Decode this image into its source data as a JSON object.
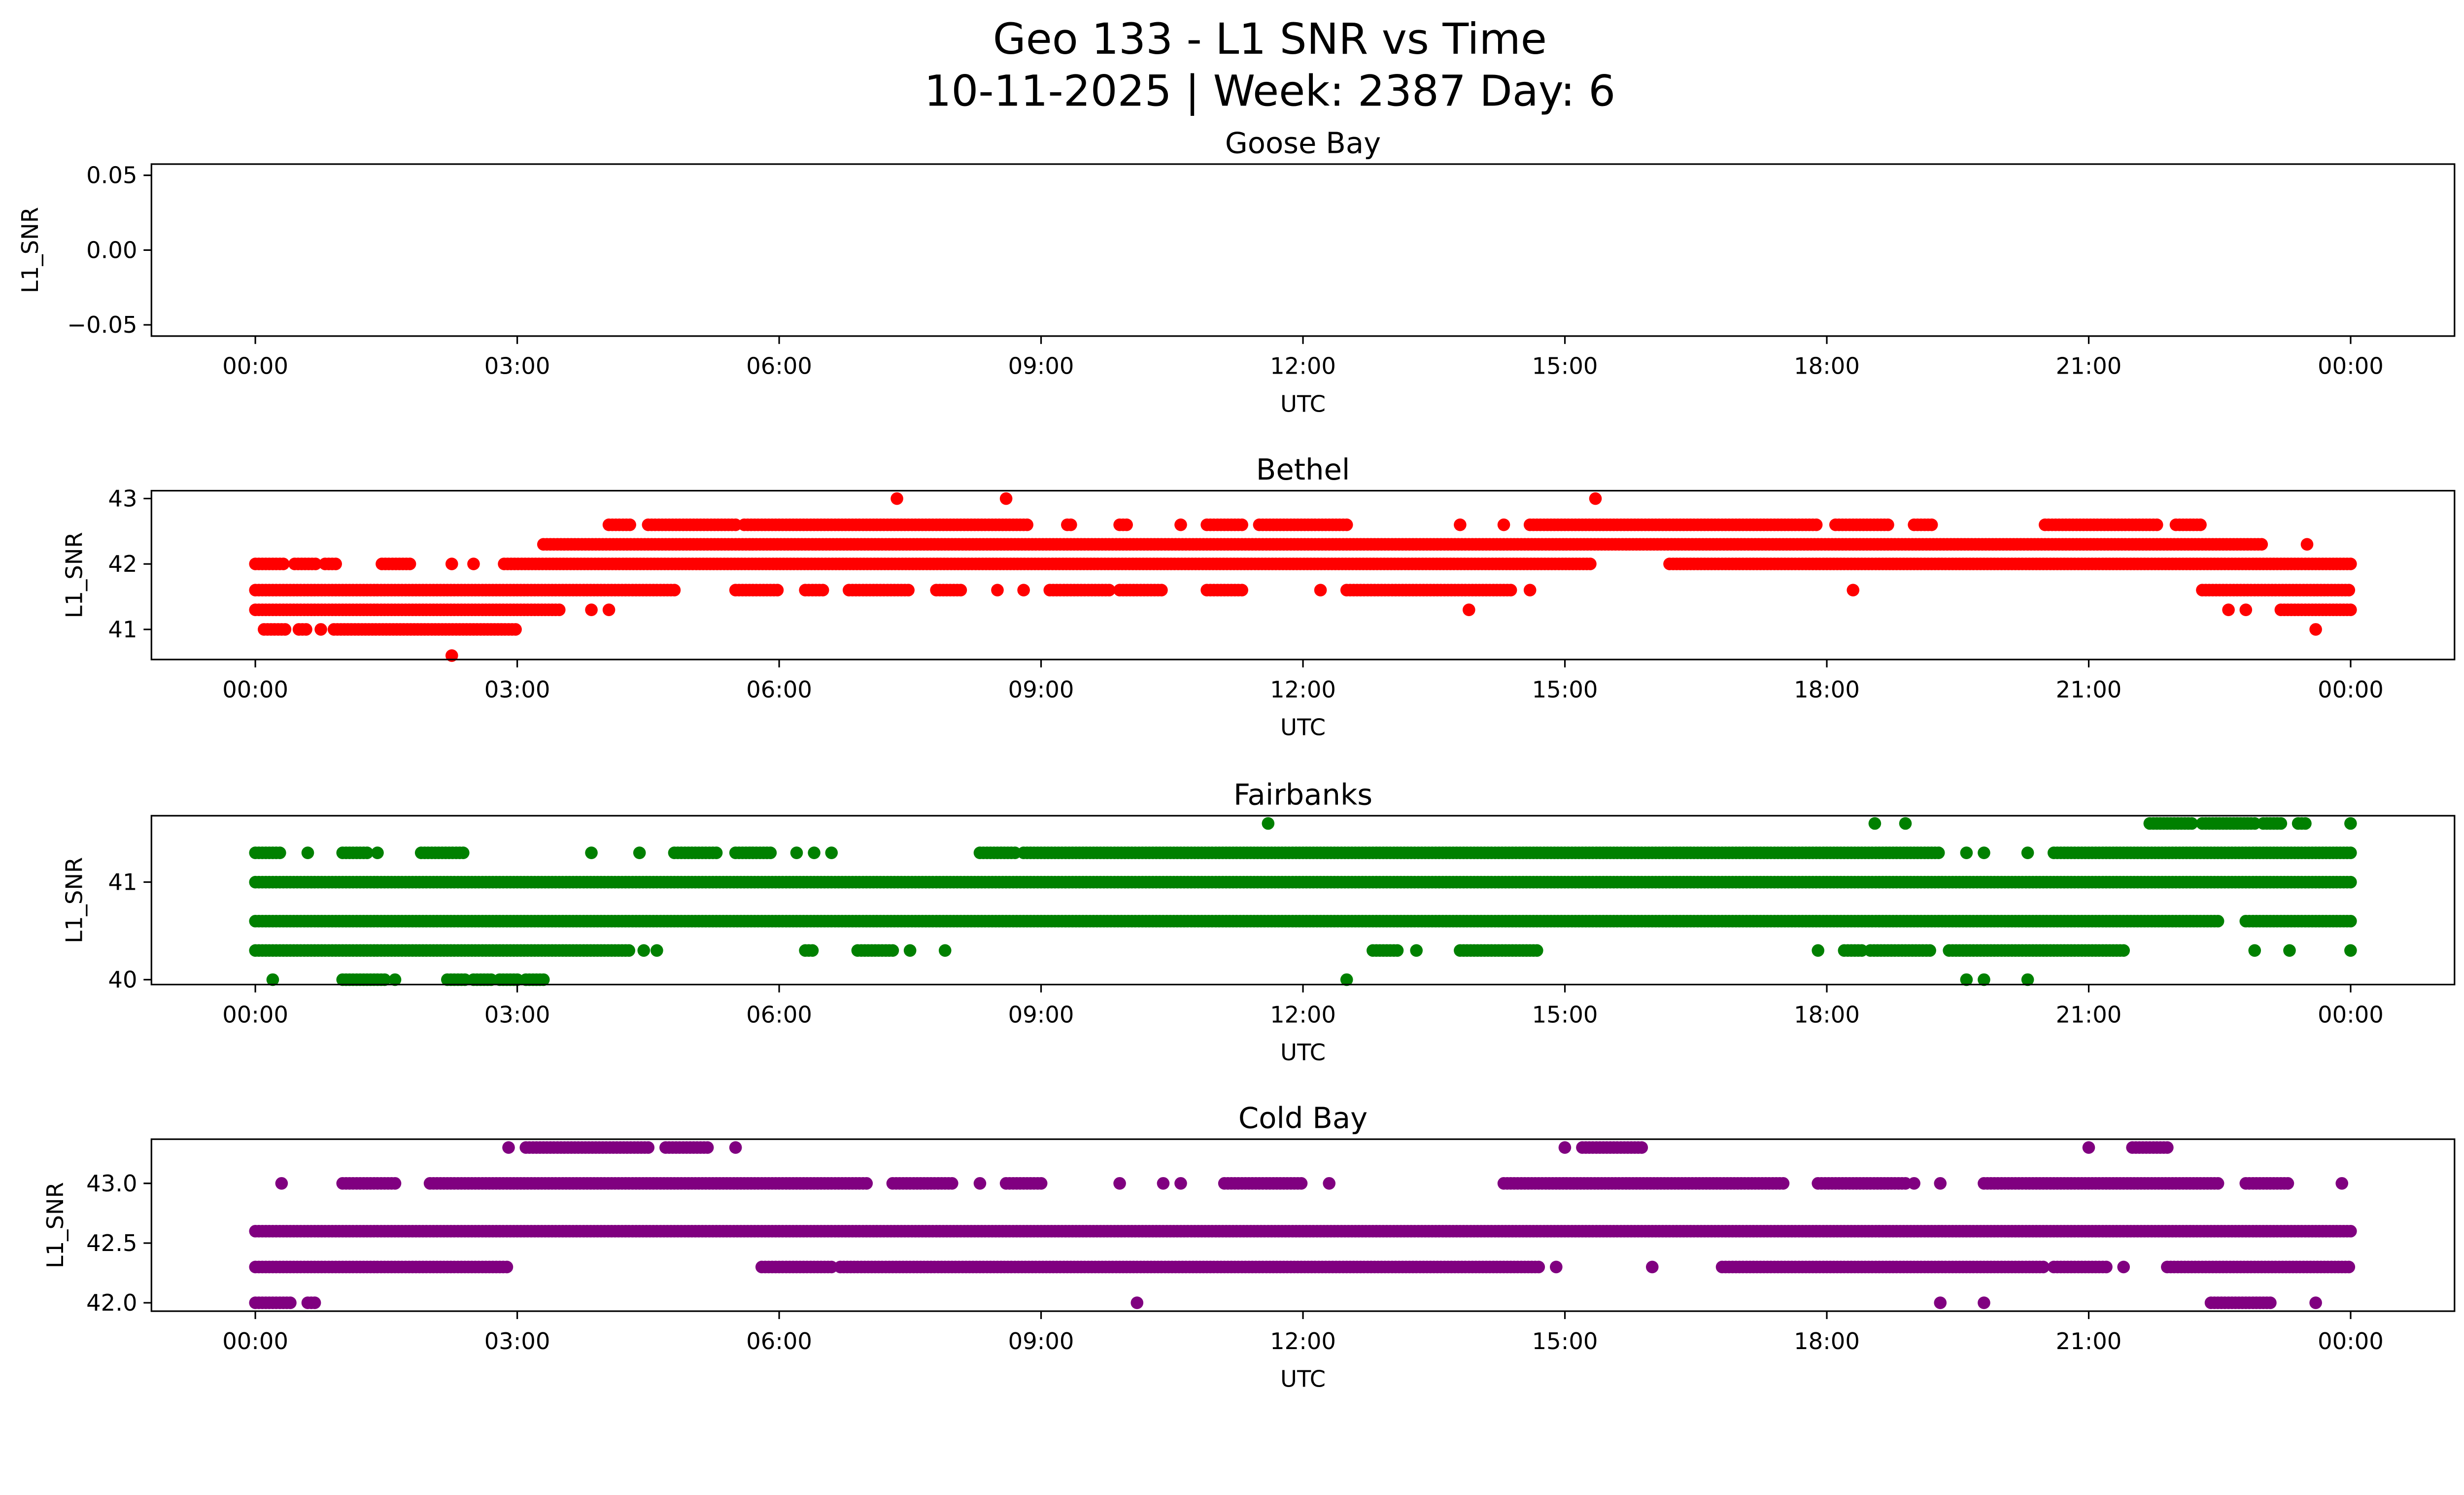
{
  "chart_data": {
    "type": "scatter",
    "title": "Geo 133 - L1 SNR vs Time",
    "subtitle": "10-11-2025 | Week: 2387 Day: 6",
    "xlabel": "UTC",
    "ylabel": "L1_SNR",
    "x_unit": "hours since 00:00 UTC",
    "xlim": [
      -1.19,
      25.19
    ],
    "x_ticks": [
      0,
      3,
      6,
      9,
      12,
      15,
      18,
      21,
      24
    ],
    "x_tick_labels": [
      "00:00",
      "03:00",
      "06:00",
      "09:00",
      "12:00",
      "15:00",
      "18:00",
      "21:00",
      "00:00"
    ],
    "point_spacing_hours": 0.04,
    "panels": [
      {
        "title": "Goose Bay",
        "color": "#ff0000",
        "ylim": [
          -0.0575,
          0.0575
        ],
        "y_ticks": [
          0.05,
          0.0,
          -0.05
        ],
        "y_tick_labels": [
          "0.05",
          "0.00",
          "−0.05"
        ],
        "levels": []
      },
      {
        "title": "Bethel",
        "color": "#ff0000",
        "ylim": [
          40.54,
          43.12
        ],
        "y_ticks": [
          43,
          42,
          41
        ],
        "y_tick_labels": [
          "43",
          "42",
          "41"
        ],
        "levels": [
          {
            "y": 43,
            "ranges": [
              7.35,
              8.6,
              15.35
            ]
          },
          {
            "y": 42.6,
            "ranges": [
              [
                4.05,
                4.3
              ],
              [
                4.5,
                5.5
              ],
              [
                5.6,
                8.85
              ],
              [
                9.3,
                9.35
              ],
              [
                9.9,
                10.0
              ],
              10.6,
              [
                10.9,
                11.3
              ],
              [
                11.5,
                12.5
              ],
              13.8,
              14.3,
              [
                14.6,
                17.9
              ],
              [
                18.1,
                18.7
              ],
              [
                19.0,
                19.2
              ],
              [
                20.5,
                21.8
              ],
              [
                22.0,
                22.3
              ]
            ]
          },
          {
            "y": 42.3,
            "ranges": [
              [
                3.3,
                23.0
              ],
              23.5
            ]
          },
          {
            "y": 42,
            "ranges": [
              [
                0,
                0.35
              ],
              [
                0.45,
                0.7
              ],
              [
                0.8,
                0.95
              ],
              [
                1.45,
                1.8
              ],
              2.25,
              2.5,
              [
                2.85,
                15.3
              ],
              [
                16.2,
                24
              ]
            ]
          },
          {
            "y": 41.6,
            "ranges": [
              [
                0,
                4.8
              ],
              [
                5.5,
                6.0
              ],
              [
                6.3,
                6.5
              ],
              [
                6.8,
                7.5
              ],
              [
                7.8,
                8.1
              ],
              8.5,
              8.8,
              [
                9.1,
                9.8
              ],
              [
                9.9,
                10.4
              ],
              [
                10.9,
                11.3
              ],
              12.2,
              [
                12.5,
                14.4
              ],
              14.6,
              18.3,
              [
                22.3,
                24
              ]
            ]
          },
          {
            "y": 41.3,
            "ranges": [
              [
                0,
                3.5
              ],
              3.85,
              4.05,
              13.9,
              22.6,
              22.8,
              [
                23.2,
                24
              ]
            ]
          },
          {
            "y": 41,
            "ranges": [
              [
                0.1,
                0.35
              ],
              [
                0.5,
                0.6
              ],
              0.75,
              [
                0.9,
                3.0
              ],
              23.6
            ]
          },
          {
            "y": 40.6,
            "ranges": [
              2.25
            ]
          }
        ]
      },
      {
        "title": "Fairbanks",
        "color": "#008000",
        "ylim": [
          39.95,
          41.68
        ],
        "y_ticks": [
          41,
          40
        ],
        "y_tick_labels": [
          "41",
          "40"
        ],
        "levels": [
          {
            "y": 41.6,
            "ranges": [
              11.6,
              18.55,
              18.9,
              [
                21.7,
                22.2
              ],
              [
                22.3,
                22.9
              ],
              [
                23.0,
                23.2
              ],
              [
                23.4,
                23.5
              ],
              24
            ]
          },
          {
            "y": 41.3,
            "ranges": [
              [
                0,
                0.3
              ],
              0.6,
              [
                1.0,
                1.3
              ],
              1.4,
              [
                1.9,
                2.4
              ],
              3.85,
              4.4,
              [
                4.8,
                5.3
              ],
              [
                5.5,
                5.9
              ],
              6.2,
              6.4,
              6.6,
              [
                8.3,
                8.7
              ],
              [
                8.8,
                19.3
              ],
              19.6,
              19.8,
              20.3,
              [
                20.6,
                24
              ]
            ]
          },
          {
            "y": 41,
            "ranges": [
              [
                0,
                24
              ]
            ]
          },
          {
            "y": 40.6,
            "ranges": [
              [
                0,
                22.5
              ],
              [
                22.8,
                24
              ]
            ]
          },
          {
            "y": 40.3,
            "ranges": [
              [
                0,
                4.3
              ],
              4.45,
              4.6,
              [
                6.3,
                6.4
              ],
              [
                6.9,
                7.3
              ],
              7.5,
              7.9,
              [
                12.8,
                13.1
              ],
              13.3,
              [
                13.8,
                14.7
              ],
              17.9,
              [
                18.2,
                18.4
              ],
              [
                18.5,
                19.2
              ],
              [
                19.4,
                21.4
              ],
              22.9,
              23.3,
              24
            ]
          },
          {
            "y": 40,
            "ranges": [
              0.2,
              [
                1.0,
                1.5
              ],
              1.6,
              [
                2.2,
                2.4
              ],
              [
                2.5,
                2.7
              ],
              [
                2.8,
                3.0
              ],
              [
                3.1,
                3.3
              ],
              12.5,
              19.6,
              19.8,
              20.3
            ]
          }
        ]
      },
      {
        "title": "Cold Bay",
        "color": "#800080",
        "ylim": [
          41.93,
          43.37
        ],
        "y_ticks": [
          43.0,
          42.5,
          42.0
        ],
        "y_tick_labels": [
          "43.0",
          "42.5",
          "42.0"
        ],
        "levels": [
          {
            "y": 43.3,
            "ranges": [
              2.9,
              [
                3.1,
                4.5
              ],
              [
                4.7,
                5.2
              ],
              5.5,
              15.0,
              [
                15.2,
                15.9
              ],
              21.0,
              [
                21.5,
                21.9
              ]
            ]
          },
          {
            "y": 43,
            "ranges": [
              0.3,
              [
                1.0,
                1.6
              ],
              [
                2.0,
                7.0
              ],
              [
                7.3,
                8.0
              ],
              8.3,
              [
                8.6,
                9.0
              ],
              9.9,
              10.4,
              10.6,
              [
                11.1,
                12.0
              ],
              12.3,
              [
                14.3,
                17.5
              ],
              [
                17.9,
                18.9
              ],
              19.0,
              19.3,
              [
                19.8,
                22.5
              ],
              [
                22.8,
                23.3
              ],
              23.9
            ]
          },
          {
            "y": 42.6,
            "ranges": [
              [
                0,
                24
              ]
            ]
          },
          {
            "y": 42.3,
            "ranges": [
              [
                0,
                2.9
              ],
              [
                5.8,
                6.6
              ],
              [
                6.7,
                14.7
              ],
              14.9,
              16.0,
              [
                16.8,
                20.5
              ],
              [
                20.6,
                21.2
              ],
              21.4,
              [
                21.9,
                24
              ]
            ]
          },
          {
            "y": 42,
            "ranges": [
              [
                0,
                0.4
              ],
              [
                0.6,
                0.7
              ],
              10.1,
              19.3,
              19.8,
              [
                22.4,
                23.1
              ],
              23.6
            ]
          }
        ]
      }
    ]
  }
}
